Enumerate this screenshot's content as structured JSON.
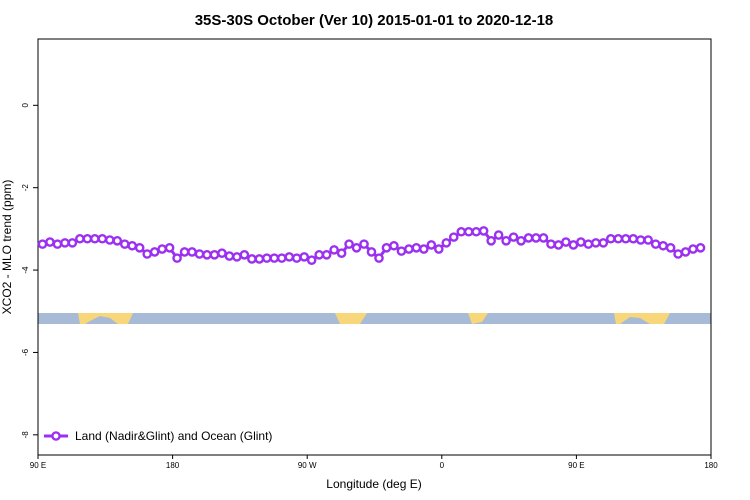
{
  "chart_data": {
    "type": "line",
    "title": "35S-30S October (Ver 10)   2015-01-01 to 2020-12-18",
    "x_label": "Longitude (deg E)",
    "y_label": "XCO2 - MLO trend (ppm)",
    "xlim": [
      90,
      540
    ],
    "ylim": [
      -8.49,
      1.61
    ],
    "xticks": [
      {
        "value": 90,
        "label": "90 E"
      },
      180,
      {
        "value": 270,
        "label": "90 W"
      },
      {
        "value": 360,
        "label": "0"
      },
      {
        "value": 450,
        "label": "90 E"
      },
      {
        "value": 540,
        "label": "180"
      }
    ],
    "yticks": [
      0,
      -2,
      -4,
      -6,
      -8
    ],
    "legend": "bottom-left",
    "x": [
      93,
      98,
      103,
      108,
      113,
      118,
      123,
      128,
      133,
      138,
      143,
      148,
      153,
      158,
      163,
      168,
      173,
      178,
      183,
      188,
      193,
      198,
      203,
      208,
      213,
      218,
      223,
      228,
      233,
      238,
      243,
      248,
      253,
      258,
      263,
      268,
      273,
      278,
      283,
      288,
      293,
      298,
      303,
      308,
      313,
      318,
      323,
      328,
      333,
      338,
      343,
      348,
      353,
      358,
      363,
      368,
      373,
      378,
      383,
      388,
      393,
      398,
      403,
      408,
      413,
      418,
      423,
      428,
      433,
      438,
      443,
      448,
      453,
      458,
      463,
      468,
      473,
      478,
      483,
      488,
      493,
      498,
      503,
      508,
      513,
      518,
      523,
      528,
      533
    ],
    "series": [
      {
        "name": "Land (Nadir&Glint) and Ocean (Glint)",
        "color": "#9b30f0",
        "values": [
          -3.37,
          -3.32,
          -3.37,
          -3.34,
          -3.34,
          -3.24,
          -3.24,
          -3.24,
          -3.24,
          -3.27,
          -3.29,
          -3.37,
          -3.41,
          -3.46,
          -3.61,
          -3.56,
          -3.49,
          -3.46,
          -3.71,
          -3.56,
          -3.56,
          -3.61,
          -3.63,
          -3.63,
          -3.59,
          -3.66,
          -3.68,
          -3.63,
          -3.73,
          -3.73,
          -3.71,
          -3.71,
          -3.71,
          -3.68,
          -3.71,
          -3.68,
          -3.76,
          -3.63,
          -3.63,
          -3.51,
          -3.59,
          -3.37,
          -3.46,
          -3.37,
          -3.56,
          -3.71,
          -3.46,
          -3.41,
          -3.54,
          -3.49,
          -3.46,
          -3.49,
          -3.39,
          -3.49,
          -3.34,
          -3.2,
          -3.07,
          -3.07,
          -3.07,
          -3.05,
          -3.29,
          -3.15,
          -3.29,
          -3.2,
          -3.29,
          -3.22,
          -3.22,
          -3.22,
          -3.37,
          -3.39,
          -3.32,
          -3.39,
          -3.32,
          -3.37,
          -3.34,
          -3.34,
          -3.24,
          -3.24,
          -3.24,
          -3.24,
          -3.27,
          -3.27,
          -3.37,
          -3.41,
          -3.46,
          -3.61,
          -3.56,
          -3.49,
          -3.46
        ]
      }
    ]
  }
}
